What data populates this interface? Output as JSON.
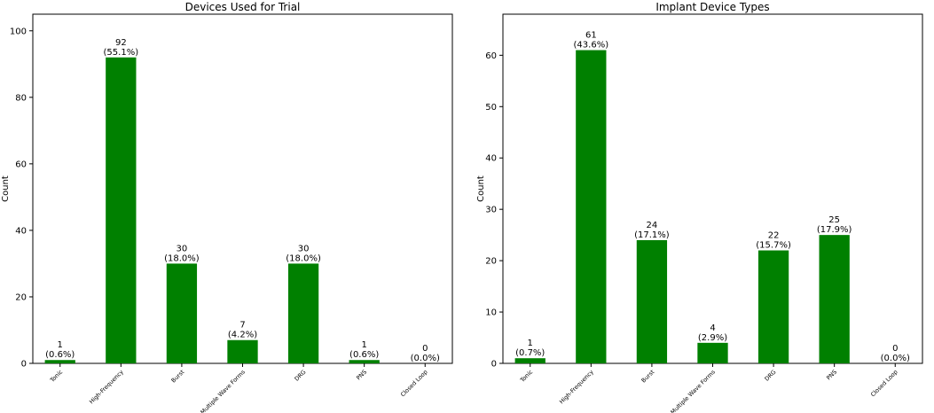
{
  "chart_data": [
    {
      "type": "bar",
      "title": "Devices Used for Trial",
      "xlabel": "",
      "ylabel": "Count",
      "ylim": [
        0,
        105
      ],
      "yticks": [
        0,
        20,
        40,
        60,
        80,
        100
      ],
      "grid": false,
      "bar_color": "#008000",
      "categories": [
        "Tonic",
        "High-Frequency",
        "Burst",
        "Multiple Wave Forms",
        "DRG",
        "PNS",
        "Closed Loop"
      ],
      "values": [
        1,
        92,
        30,
        7,
        30,
        1,
        0
      ],
      "value_labels": [
        "1",
        "92",
        "30",
        "7",
        "30",
        "1",
        "0"
      ],
      "percent_labels": [
        "(0.6%)",
        "(55.1%)",
        "(18.0%)",
        "(4.2%)",
        "(18.0%)",
        "(0.6%)",
        "(0.0%)"
      ]
    },
    {
      "type": "bar",
      "title": "Implant Device Types",
      "xlabel": "",
      "ylabel": "Count",
      "ylim": [
        0,
        68
      ],
      "yticks": [
        0,
        10,
        20,
        30,
        40,
        50,
        60
      ],
      "grid": false,
      "bar_color": "#008000",
      "categories": [
        "Tonic",
        "High-Frequency",
        "Burst",
        "Multiple Wave Forms",
        "DRG",
        "PNS",
        "Closed Loop"
      ],
      "values": [
        1,
        61,
        24,
        4,
        22,
        25,
        0
      ],
      "value_labels": [
        "1",
        "61",
        "24",
        "4",
        "22",
        "25",
        "0"
      ],
      "percent_labels": [
        "(0.7%)",
        "(43.6%)",
        "(17.1%)",
        "(2.9%)",
        "(15.7%)",
        "(17.9%)",
        "(0.0%)"
      ]
    }
  ]
}
